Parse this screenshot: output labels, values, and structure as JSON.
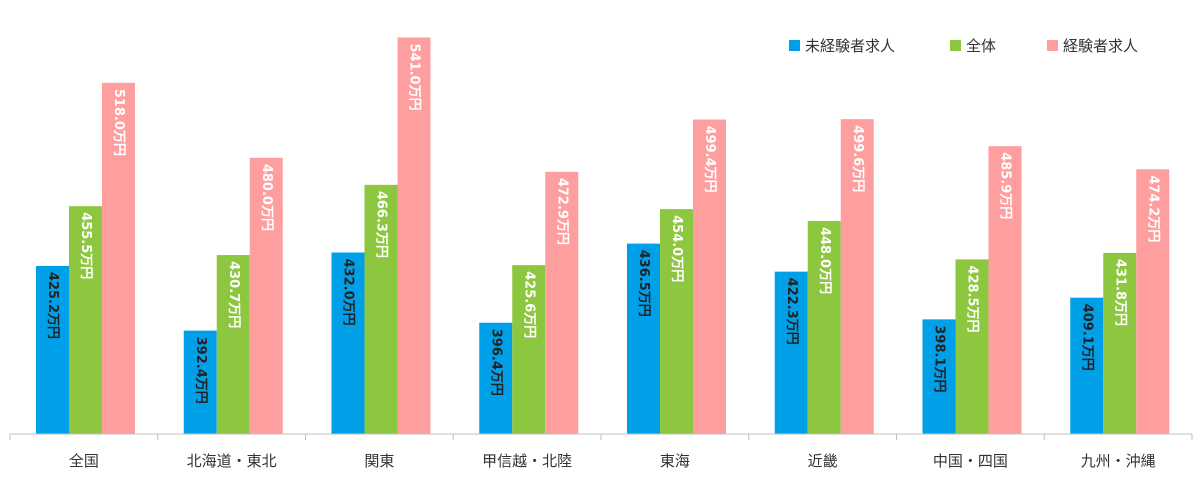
{
  "chart_data": {
    "type": "bar",
    "title": "",
    "xlabel": "",
    "ylabel": "",
    "ylim": [
      340,
      560
    ],
    "grid": false,
    "legend_position": "top-right",
    "categories": [
      "全国",
      "北海道・東北",
      "関東",
      "甲信越・北陸",
      "東海",
      "近畿",
      "中国・四国",
      "九州・沖縄"
    ],
    "series": [
      {
        "name": "未経験者求人",
        "color": "#00a0e9",
        "label_color": "#222222",
        "values": [
          425.2,
          392.4,
          432.0,
          396.4,
          436.5,
          422.3,
          398.1,
          409.1
        ],
        "labels": [
          "425.2万円",
          "392.4万円",
          "432.0万円",
          "396.4万円",
          "436.5万円",
          "422.3万円",
          "398.1万円",
          "409.1万円"
        ]
      },
      {
        "name": "全体",
        "color": "#8dc63f",
        "label_color": "#ffffff",
        "values": [
          455.5,
          430.7,
          466.3,
          425.6,
          454.0,
          448.0,
          428.5,
          431.8
        ],
        "labels": [
          "455.5万円",
          "430.7万円",
          "466.3万円",
          "425.6万円",
          "454.0万円",
          "448.0万円",
          "428.5万円",
          "431.8万円"
        ]
      },
      {
        "name": "経験者求人",
        "color": "#ff9e9e",
        "label_color": "#ffffff",
        "values": [
          518.0,
          480.0,
          541.0,
          472.9,
          499.4,
          499.6,
          485.9,
          474.2
        ],
        "labels": [
          "518.0万円",
          "480.0万円",
          "541.0万円",
          "472.9万円",
          "499.4万円",
          "499.6万円",
          "485.9万円",
          "474.2万円"
        ]
      }
    ]
  }
}
